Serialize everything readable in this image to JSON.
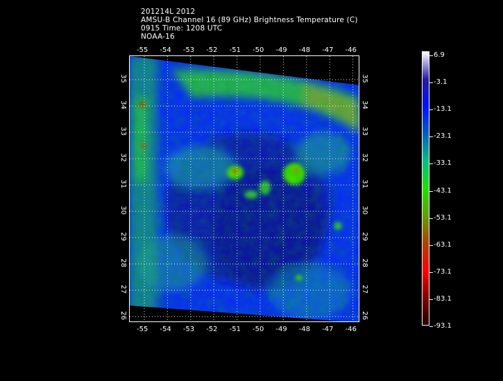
{
  "header": {
    "line1": "201214L 2012",
    "line2": "AMSU-B Channel 16 (89 GHz) Brightness Temperature (C)",
    "line3": "0915 Time: 1208 UTC",
    "line4": "NOAA-16"
  },
  "map": {
    "lon_labels": [
      "-55",
      "-54",
      "-53",
      "-52",
      "-51",
      "-50",
      "-49",
      "-48",
      "-47",
      "-46"
    ],
    "lat_labels": [
      "35",
      "34",
      "33",
      "32",
      "31",
      "30",
      "29",
      "28",
      "27",
      "26"
    ],
    "lon_range": [
      -55.6,
      -45.6
    ],
    "lat_range": [
      25.8,
      35.8
    ]
  },
  "colorbar": {
    "labels": [
      "6.9",
      "-3.1",
      "-13.1",
      "-23.1",
      "-33.1",
      "-43.1",
      "-53.1",
      "-63.1",
      "-73.1",
      "-83.1",
      "-93.1"
    ],
    "colors": [
      "#ffffff",
      "#2a1aa0",
      "#0010ff",
      "#0060c0",
      "#00c080",
      "#20e000",
      "#60a000",
      "#b04000",
      "#ff0000",
      "#800000",
      "#200000"
    ]
  }
}
